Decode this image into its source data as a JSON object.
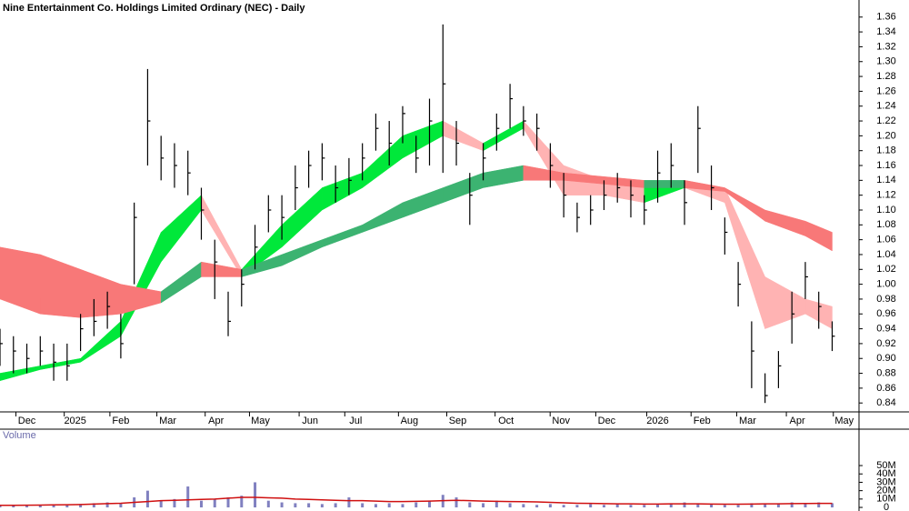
{
  "chart_data": [
    {
      "type": "ohlc",
      "title": "Nine Entertainment Co. Holdings Limited Ordinary (NEC) - Daily",
      "color": "#000000",
      "xlim": [
        0,
        64
      ],
      "xticks": [
        {
          "value": 2.0,
          "label": "Dec"
        },
        {
          "value": 5.6,
          "label": "2025"
        },
        {
          "value": 9.0,
          "label": "Feb"
        },
        {
          "value": 12.5,
          "label": "Mar"
        },
        {
          "value": 16.1,
          "label": "Apr"
        },
        {
          "value": 19.4,
          "label": "May"
        },
        {
          "value": 23.1,
          "label": "Jun"
        },
        {
          "value": 26.5,
          "label": "Jul"
        },
        {
          "value": 30.5,
          "label": "Aug"
        },
        {
          "value": 34.1,
          "label": "Sep"
        },
        {
          "value": 37.7,
          "label": "Oct"
        },
        {
          "value": 41.8,
          "label": "Nov"
        },
        {
          "value": 45.2,
          "label": "Dec"
        },
        {
          "value": 49.0,
          "label": "2026"
        },
        {
          "value": 52.3,
          "label": "Feb"
        },
        {
          "value": 55.7,
          "label": "Mar"
        },
        {
          "value": 59.4,
          "label": "Apr"
        },
        {
          "value": 62.9,
          "label": "May"
        }
      ],
      "ylim": [
        0.828,
        1.383
      ],
      "yticks": [
        0.84,
        0.86,
        0.88,
        {
          "value": 0.9,
          "label": "0.90"
        },
        0.92,
        0.94,
        0.96,
        0.98,
        {
          "value": 1.0,
          "label": "1.00"
        },
        1.02,
        1.04,
        1.06,
        1.08,
        {
          "value": 1.1,
          "label": "1.10"
        },
        1.12,
        1.14,
        1.16,
        1.18,
        {
          "value": 1.2,
          "label": "1.20"
        },
        1.22,
        1.24,
        1.26,
        1.28,
        {
          "value": 1.3,
          "label": "1.30"
        },
        1.32,
        1.34,
        1.36
      ],
      "high": [
        0.94,
        0.93,
        0.92,
        0.93,
        0.92,
        0.92,
        0.96,
        0.98,
        0.99,
        0.96,
        1.11,
        1.29,
        1.2,
        1.19,
        1.18,
        1.13,
        1.06,
        0.99,
        1.02,
        1.08,
        1.12,
        1.12,
        1.16,
        1.18,
        1.19,
        1.16,
        1.17,
        1.19,
        1.23,
        1.22,
        1.24,
        1.2,
        1.25,
        1.35,
        1.22,
        1.15,
        1.19,
        1.23,
        1.27,
        1.24,
        1.23,
        1.19,
        1.15,
        1.11,
        1.12,
        1.14,
        1.15,
        1.14,
        1.12,
        1.18,
        1.19,
        1.14,
        1.24,
        1.16,
        1.09,
        1.03,
        0.95,
        0.88,
        0.91,
        0.99,
        1.03,
        0.99,
        0.95
      ],
      "low": [
        0.89,
        0.88,
        0.88,
        0.89,
        0.87,
        0.87,
        0.91,
        0.93,
        0.94,
        0.9,
        1.0,
        1.16,
        1.14,
        1.13,
        1.12,
        1.06,
        0.98,
        0.93,
        0.97,
        1.02,
        1.07,
        1.06,
        1.1,
        1.13,
        1.14,
        1.11,
        1.12,
        1.14,
        1.18,
        1.16,
        1.19,
        1.15,
        1.16,
        1.15,
        1.16,
        1.08,
        1.14,
        1.18,
        1.21,
        1.2,
        1.18,
        1.13,
        1.09,
        1.07,
        1.08,
        1.1,
        1.11,
        1.09,
        1.08,
        1.11,
        1.13,
        1.08,
        1.15,
        1.1,
        1.04,
        0.97,
        0.86,
        0.84,
        0.86,
        0.92,
        0.98,
        0.94,
        0.91
      ],
      "close": [
        0.92,
        0.91,
        0.9,
        0.91,
        0.895,
        0.89,
        0.94,
        0.95,
        0.97,
        0.92,
        1.09,
        1.22,
        1.17,
        1.16,
        1.15,
        1.1,
        1.03,
        0.95,
        1.0,
        1.05,
        1.1,
        1.09,
        1.13,
        1.16,
        1.17,
        1.13,
        1.14,
        1.17,
        1.21,
        1.19,
        1.23,
        1.17,
        1.22,
        1.27,
        1.19,
        1.12,
        1.17,
        1.21,
        1.25,
        1.22,
        1.21,
        1.16,
        1.12,
        1.09,
        1.1,
        1.12,
        1.13,
        1.12,
        1.1,
        1.15,
        1.16,
        1.11,
        1.21,
        1.13,
        1.07,
        1.0,
        0.91,
        0.85,
        0.89,
        0.96,
        1.01,
        0.97,
        0.93
      ],
      "bands_x": [
        0,
        3,
        6,
        9,
        12,
        15,
        18,
        21,
        24,
        27,
        30,
        33,
        36,
        39,
        42,
        45,
        48,
        51,
        54,
        57,
        60,
        62
      ],
      "bands": [
        {
          "up_color": "#00e83a",
          "down_color": "#ffb3b3",
          "upper": [
            0.88,
            0.89,
            0.9,
            0.95,
            1.07,
            1.12,
            1.02,
            1.08,
            1.13,
            1.15,
            1.2,
            1.22,
            1.19,
            1.22,
            1.16,
            1.14,
            1.13,
            1.14,
            1.13,
            1.01,
            0.98,
            0.97
          ],
          "lower": [
            0.87,
            0.885,
            0.895,
            0.93,
            1.03,
            1.1,
            1.01,
            1.05,
            1.1,
            1.13,
            1.17,
            1.2,
            1.18,
            1.21,
            1.12,
            1.12,
            1.11,
            1.13,
            1.11,
            0.94,
            0.96,
            0.94
          ]
        },
        {
          "up_color": "#3cb371",
          "down_color": "#f87878",
          "upper": [
            1.05,
            1.04,
            1.02,
            1.0,
            0.99,
            1.03,
            1.02,
            1.04,
            1.06,
            1.08,
            1.11,
            1.13,
            1.15,
            1.16,
            1.15,
            1.145,
            1.14,
            1.14,
            1.13,
            1.1,
            1.085,
            1.07
          ],
          "lower": [
            0.98,
            0.96,
            0.955,
            0.96,
            0.975,
            1.01,
            1.01,
            1.025,
            1.05,
            1.07,
            1.09,
            1.11,
            1.13,
            1.14,
            1.14,
            1.135,
            1.13,
            1.13,
            1.125,
            1.085,
            1.065,
            1.045
          ]
        }
      ]
    },
    {
      "type": "volume",
      "title": "Volume",
      "color": "#8080c0",
      "avg_color": "#d01010",
      "ylim": [
        -4.3,
        93.5
      ],
      "yticks": [
        {
          "value": 0,
          "label": "0"
        },
        {
          "value": 10,
          "label": "10M"
        },
        {
          "value": 20,
          "label": "20M"
        },
        {
          "value": 30,
          "label": "30M"
        },
        {
          "value": 40,
          "label": "40M"
        },
        {
          "value": 50,
          "label": "50M"
        }
      ],
      "values": [
        2,
        2,
        2,
        3,
        3,
        3,
        4,
        5,
        6,
        5,
        12,
        20,
        8,
        10,
        25,
        8,
        10,
        12,
        14,
        30,
        8,
        6,
        5,
        5,
        4,
        5,
        12,
        5,
        4,
        5,
        4,
        6,
        8,
        15,
        12,
        6,
        5,
        8,
        5,
        4,
        3,
        4,
        3,
        3,
        4,
        3,
        4,
        3,
        3,
        4,
        5,
        6,
        5,
        4,
        3,
        3,
        5,
        4,
        5,
        6,
        5,
        6,
        5
      ],
      "average": [
        2.5,
        2.5,
        2.6,
        2.8,
        3,
        3.2,
        3.5,
        4,
        4.5,
        5,
        6,
        7,
        8,
        8.5,
        9,
        9.5,
        10,
        11,
        12,
        12,
        11.5,
        11,
        10,
        9.5,
        9,
        8.5,
        8,
        8,
        7.5,
        7,
        7,
        7.2,
        7.5,
        8,
        8.5,
        8,
        7.5,
        7.2,
        7,
        6.8,
        6.5,
        6,
        5.5,
        5,
        4.8,
        4.5,
        4.3,
        4.2,
        4,
        4,
        4.2,
        4.3,
        4.2,
        4,
        3.8,
        3.8,
        4,
        4.2,
        4.3,
        4.5,
        4.6,
        4.8,
        4.8
      ]
    }
  ]
}
